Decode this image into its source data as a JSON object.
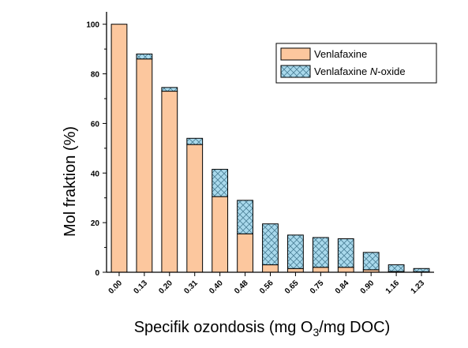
{
  "chart_data": {
    "type": "bar",
    "stacked": true,
    "categories": [
      "0.00",
      "0.13",
      "0.20",
      "0.31",
      "0.40",
      "0.48",
      "0.56",
      "0.65",
      "0.75",
      "0.84",
      "0.90",
      "1.16",
      "1.23"
    ],
    "series": [
      {
        "name": "Venlafaxine",
        "values": [
          100,
          86,
          73,
          51.5,
          30.5,
          15.5,
          3,
          1.5,
          2,
          2,
          1,
          0.3,
          0.2
        ],
        "color": "#fcc79e",
        "pattern": "solid"
      },
      {
        "name": "Venlafaxine N-oxide",
        "values": [
          0,
          2,
          1.5,
          2.5,
          11,
          13.5,
          16.5,
          13.5,
          12,
          11.5,
          7,
          2.7,
          1.3
        ],
        "color": "#a9d9ec",
        "pattern": "crosshatch"
      }
    ],
    "xlabel": {
      "before": "Specifik ozondosis (mg O",
      "sub": "3",
      "after": "/mg DOC)"
    },
    "ylabel": "Mol fraktion (%)",
    "ylim": [
      0,
      105
    ],
    "yticks": [
      0,
      20,
      40,
      60,
      80,
      100
    ],
    "legend": {
      "position": "top-right",
      "entries": [
        {
          "label": "Venlafaxine",
          "pattern": "solid"
        },
        {
          "label_before": "Venlafaxine ",
          "label_italic": "N",
          "label_after": "-oxide",
          "pattern": "crosshatch"
        }
      ]
    },
    "grid": false
  }
}
